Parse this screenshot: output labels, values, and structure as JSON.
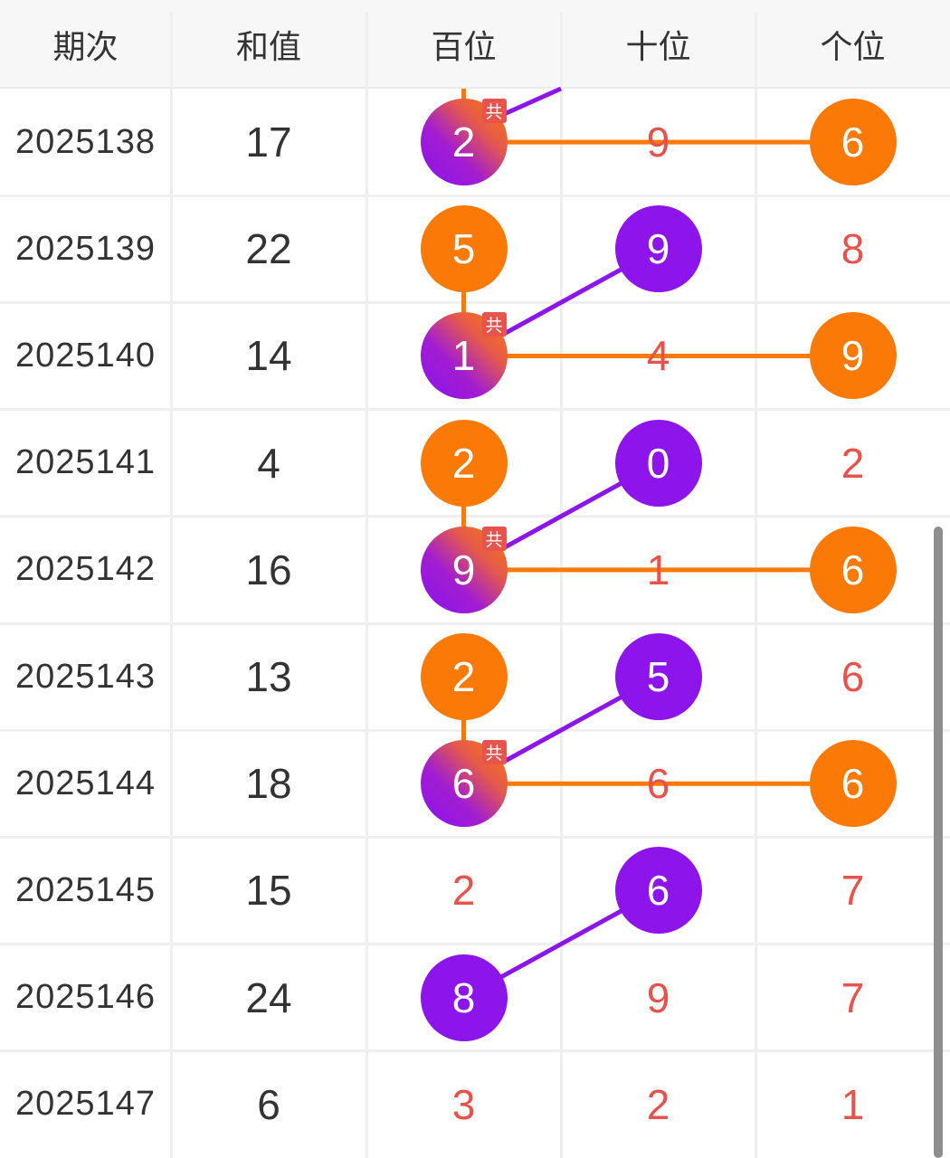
{
  "headers": [
    "期次",
    "和值",
    "百位",
    "十位",
    "个位"
  ],
  "shared_badge": "共",
  "colors": {
    "orange": "#fb7a07",
    "purple": "#8e14ec",
    "miss_text": "#e8524a"
  },
  "rows": [
    {
      "issue": "2025138",
      "sum": "17",
      "d": [
        "2",
        "9",
        "6"
      ],
      "balls": [
        "shared",
        "miss",
        "orange"
      ]
    },
    {
      "issue": "2025139",
      "sum": "22",
      "d": [
        "5",
        "9",
        "8"
      ],
      "balls": [
        "orange",
        "purple",
        "miss"
      ]
    },
    {
      "issue": "2025140",
      "sum": "14",
      "d": [
        "1",
        "4",
        "9"
      ],
      "balls": [
        "shared",
        "miss",
        "orange"
      ]
    },
    {
      "issue": "2025141",
      "sum": "4",
      "d": [
        "2",
        "0",
        "2"
      ],
      "balls": [
        "orange",
        "purple",
        "miss"
      ]
    },
    {
      "issue": "2025142",
      "sum": "16",
      "d": [
        "9",
        "1",
        "6"
      ],
      "balls": [
        "shared",
        "miss",
        "orange"
      ]
    },
    {
      "issue": "2025143",
      "sum": "13",
      "d": [
        "2",
        "5",
        "6"
      ],
      "balls": [
        "orange",
        "purple",
        "miss"
      ]
    },
    {
      "issue": "2025144",
      "sum": "18",
      "d": [
        "6",
        "6",
        "6"
      ],
      "balls": [
        "shared",
        "miss",
        "orange"
      ]
    },
    {
      "issue": "2025145",
      "sum": "15",
      "d": [
        "2",
        "6",
        "7"
      ],
      "balls": [
        "miss",
        "purple",
        "miss"
      ]
    },
    {
      "issue": "2025146",
      "sum": "24",
      "d": [
        "8",
        "9",
        "7"
      ],
      "balls": [
        "purple",
        "miss",
        "miss"
      ]
    },
    {
      "issue": "2025147",
      "sum": "6",
      "d": [
        "3",
        "2",
        "1"
      ],
      "balls": [
        "miss",
        "miss",
        "miss"
      ]
    }
  ]
}
